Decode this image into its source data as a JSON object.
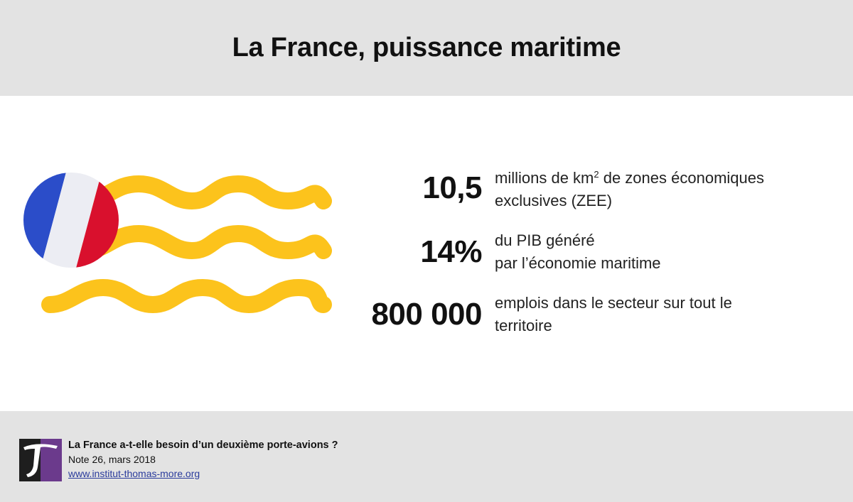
{
  "header": {
    "title": "La France, puissance maritime"
  },
  "illustration": {
    "flag_colors": {
      "blue": "#2b4dc9",
      "white": "#ecedf3",
      "red": "#d9102d"
    },
    "wave_color": "#fcc31c"
  },
  "stats": [
    {
      "value": "10,5",
      "desc_line1_pre": "millions de km",
      "desc_line1_sup": "2",
      "desc_line1_post": " de zones économiques",
      "desc_line2": "exclusives (ZEE)"
    },
    {
      "value": "14%",
      "desc_line1": "du PIB généré",
      "desc_line2": "par l’économie maritime"
    },
    {
      "value": "800 000",
      "desc_line1": "emplois dans le secteur sur tout le",
      "desc_line2": "territoire"
    }
  ],
  "footer": {
    "publication_title": "La France a-t-elle besoin d’un deuxième porte-avions ?",
    "note": "Note 26, mars 2018",
    "link": "www.institut-thomas-more.org",
    "logo_colors": {
      "dark": "#1e1e1e",
      "purple": "#6b3a8c"
    }
  }
}
